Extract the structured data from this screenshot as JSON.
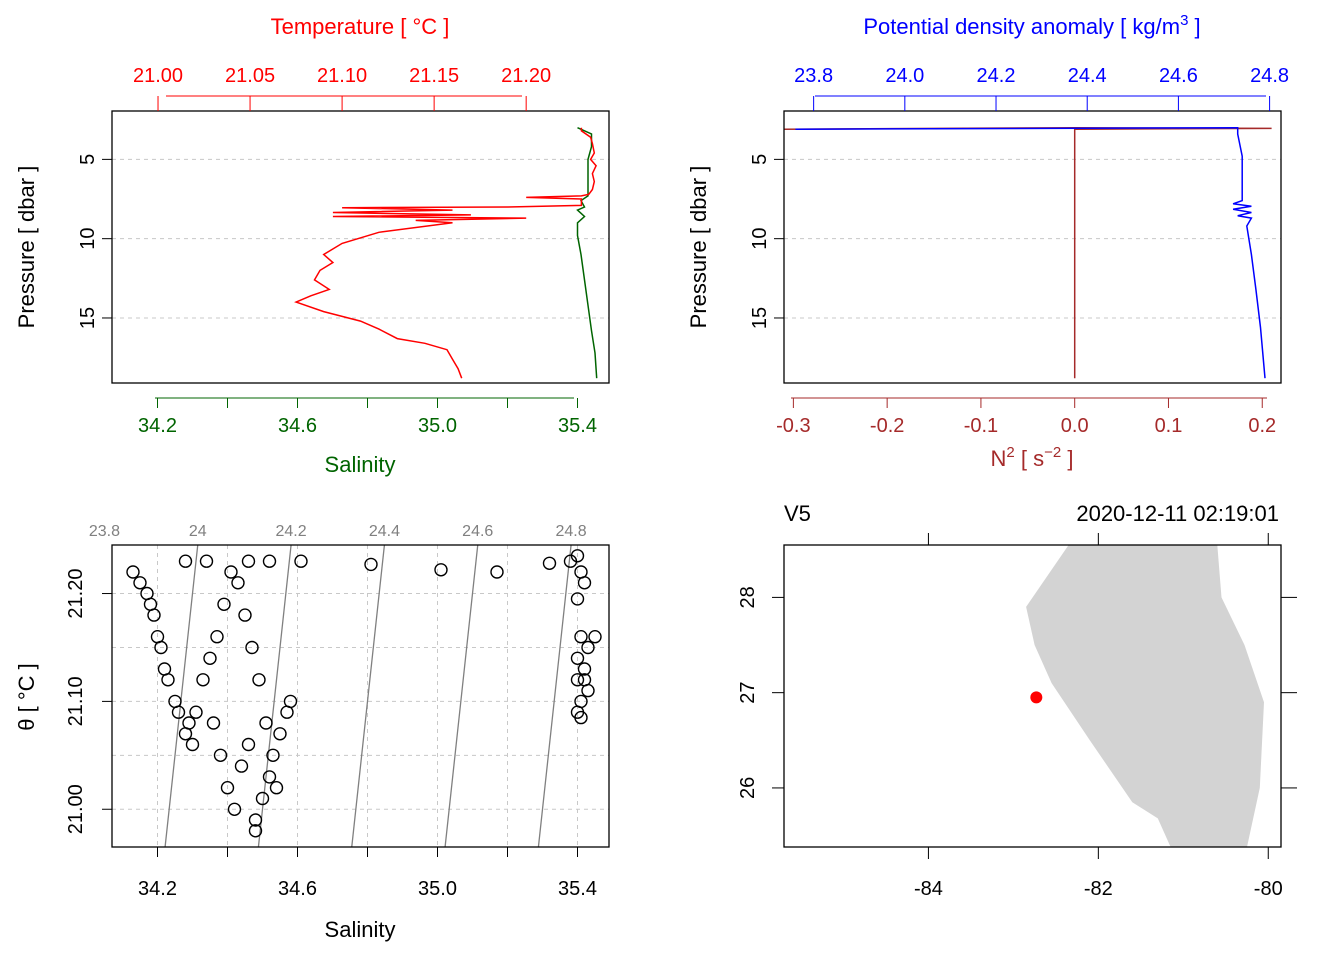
{
  "colors": {
    "temperature": "#ff0000",
    "salinity": "#006400",
    "density": "#0000ff",
    "n2": "#a52a2a",
    "grid": "#c8c8c8",
    "isopycnal": "#808080",
    "land": "#d3d3d3",
    "station": "#ff0000"
  },
  "chart_data": [
    {
      "type": "line",
      "panel": "temperature-salinity-profile",
      "title": "",
      "top_axis_label": "Temperature [ °C ]",
      "bottom_axis_label": "Salinity",
      "ylabel": "Pressure [ dbar ]",
      "temperature_xlim": [
        20.975,
        21.245
      ],
      "salinity_xlim": [
        34.07,
        35.49
      ],
      "ylim": [
        19.1,
        1.95
      ],
      "temperature_ticks": [
        "21.00",
        "21.05",
        "21.10",
        "21.15",
        "21.20"
      ],
      "salinity_ticks": [
        "34.2",
        "34.6",
        "35.0",
        "35.4"
      ],
      "pressure_ticks": [
        "5",
        "10",
        "15"
      ],
      "grid": true,
      "series": [
        {
          "name": "",
          "axis": "temperature",
          "points": [
            [
              21.23,
              3.0
            ],
            [
              21.23,
              3.2
            ],
            [
              21.235,
              3.6
            ],
            [
              21.236,
              4.0
            ],
            [
              21.237,
              4.6
            ],
            [
              21.235,
              5.0
            ],
            [
              21.238,
              5.4
            ],
            [
              21.236,
              5.9
            ],
            [
              21.237,
              6.4
            ],
            [
              21.236,
              6.9
            ],
            [
              21.234,
              7.2
            ],
            [
              21.23,
              7.3
            ],
            [
              21.2,
              7.4
            ],
            [
              21.23,
              7.5
            ],
            [
              21.23,
              7.9
            ],
            [
              21.19,
              8.0
            ],
            [
              21.1,
              8.05
            ],
            [
              21.16,
              8.2
            ],
            [
              21.095,
              8.35
            ],
            [
              21.17,
              8.5
            ],
            [
              21.095,
              8.6
            ],
            [
              21.2,
              8.7
            ],
            [
              21.14,
              8.85
            ],
            [
              21.16,
              9.0
            ],
            [
              21.12,
              9.6
            ],
            [
              21.1,
              10.3
            ],
            [
              21.09,
              11.0
            ],
            [
              21.095,
              11.5
            ],
            [
              21.088,
              12.0
            ],
            [
              21.085,
              12.6
            ],
            [
              21.093,
              13.2
            ],
            [
              21.083,
              13.6
            ],
            [
              21.075,
              14.0
            ],
            [
              21.09,
              14.6
            ],
            [
              21.11,
              15.2
            ],
            [
              21.12,
              15.7
            ],
            [
              21.13,
              16.3
            ],
            [
              21.145,
              16.6
            ],
            [
              21.157,
              17.0
            ],
            [
              21.16,
              17.6
            ],
            [
              21.163,
              18.2
            ],
            [
              21.165,
              18.8
            ]
          ]
        },
        {
          "name": "",
          "axis": "salinity",
          "points": [
            [
              35.4,
              3.0
            ],
            [
              35.44,
              3.4
            ],
            [
              35.44,
              4.2
            ],
            [
              35.43,
              5.0
            ],
            [
              35.43,
              6.2
            ],
            [
              35.43,
              7.3
            ],
            [
              35.41,
              7.6
            ],
            [
              35.42,
              8.0
            ],
            [
              35.4,
              8.2
            ],
            [
              35.42,
              8.6
            ],
            [
              35.4,
              9.0
            ],
            [
              35.4,
              9.8
            ],
            [
              35.41,
              11.0
            ],
            [
              35.42,
              12.6
            ],
            [
              35.43,
              14.2
            ],
            [
              35.44,
              15.8
            ],
            [
              35.45,
              17.2
            ],
            [
              35.455,
              18.8
            ]
          ]
        }
      ]
    },
    {
      "type": "line",
      "panel": "density-n2-profile",
      "title": "",
      "top_axis_label": "Potential density anomaly [ kg/m³ ]",
      "bottom_axis_label": "N² [ s⁻² ]",
      "ylabel": "Pressure [ dbar ]",
      "density_xlim": [
        23.735,
        24.825
      ],
      "n2_xlim": [
        -0.31,
        0.22
      ],
      "ylim": [
        19.1,
        1.95
      ],
      "density_ticks": [
        "23.8",
        "24.0",
        "24.2",
        "24.4",
        "24.6",
        "24.8"
      ],
      "n2_ticks": [
        "-0.3",
        "-0.2",
        "-0.1",
        "0.0",
        "0.1",
        "0.2"
      ],
      "pressure_ticks": [
        "5",
        "10",
        "15"
      ],
      "grid": true,
      "series": [
        {
          "name": "",
          "axis": "density",
          "points": [
            [
              23.76,
              3.1
            ],
            [
              24.73,
              3.0
            ],
            [
              24.73,
              3.4
            ],
            [
              24.74,
              4.8
            ],
            [
              24.74,
              6.6
            ],
            [
              24.74,
              7.6
            ],
            [
              24.72,
              7.8
            ],
            [
              24.76,
              7.95
            ],
            [
              24.72,
              8.15
            ],
            [
              24.76,
              8.35
            ],
            [
              24.73,
              8.55
            ],
            [
              24.76,
              8.7
            ],
            [
              24.75,
              9.2
            ],
            [
              24.76,
              11.0
            ],
            [
              24.77,
              13.2
            ],
            [
              24.78,
              15.6
            ],
            [
              24.79,
              18.8
            ]
          ]
        },
        {
          "name": "",
          "axis": "n2",
          "points": [
            [
              -0.31,
              3.1
            ],
            [
              0.0,
              3.0
            ],
            [
              0.21,
              3.05
            ],
            [
              0.0,
              3.1
            ],
            [
              0.0,
              18.8
            ]
          ]
        }
      ]
    },
    {
      "type": "scatter",
      "panel": "ts-diagram",
      "title": "",
      "xlabel": "Salinity",
      "ylabel": "θ [ °C ]",
      "xlim": [
        34.07,
        35.49
      ],
      "ylim": [
        20.965,
        21.245
      ],
      "x_ticks": [
        "34.2",
        "34.6",
        "35.0",
        "35.4"
      ],
      "y_ticks": [
        "21.00",
        "21.10",
        "21.20"
      ],
      "isopycnal_labels": [
        "23.8",
        "24",
        "24.2",
        "24.4",
        "24.6",
        "24.8"
      ],
      "grid": true,
      "points": [
        [
          34.13,
          21.22
        ],
        [
          34.15,
          21.21
        ],
        [
          34.18,
          21.19
        ],
        [
          34.2,
          21.16
        ],
        [
          34.22,
          21.13
        ],
        [
          34.25,
          21.1
        ],
        [
          34.28,
          21.07
        ],
        [
          34.3,
          21.06
        ],
        [
          34.17,
          21.2
        ],
        [
          34.19,
          21.18
        ],
        [
          34.21,
          21.15
        ],
        [
          34.23,
          21.12
        ],
        [
          34.26,
          21.09
        ],
        [
          34.29,
          21.08
        ],
        [
          34.31,
          21.09
        ],
        [
          34.33,
          21.12
        ],
        [
          34.35,
          21.14
        ],
        [
          34.37,
          21.16
        ],
        [
          34.39,
          21.19
        ],
        [
          34.41,
          21.22
        ],
        [
          34.43,
          21.21
        ],
        [
          34.45,
          21.18
        ],
        [
          34.47,
          21.15
        ],
        [
          34.49,
          21.12
        ],
        [
          34.51,
          21.08
        ],
        [
          34.53,
          21.05
        ],
        [
          34.54,
          21.02
        ],
        [
          34.36,
          21.08
        ],
        [
          34.38,
          21.05
        ],
        [
          34.4,
          21.02
        ],
        [
          34.42,
          21.0
        ],
        [
          34.44,
          21.04
        ],
        [
          34.46,
          21.06
        ],
        [
          34.48,
          20.99
        ],
        [
          34.48,
          20.98
        ],
        [
          34.5,
          21.01
        ],
        [
          34.52,
          21.03
        ],
        [
          34.55,
          21.07
        ],
        [
          34.57,
          21.09
        ],
        [
          34.58,
          21.1
        ],
        [
          34.28,
          21.23
        ],
        [
          34.34,
          21.23
        ],
        [
          34.46,
          21.23
        ],
        [
          34.52,
          21.23
        ],
        [
          34.61,
          21.23
        ],
        [
          34.81,
          21.227
        ],
        [
          35.01,
          21.222
        ],
        [
          35.17,
          21.22
        ],
        [
          35.32,
          21.228
        ],
        [
          35.38,
          21.23
        ],
        [
          35.4,
          21.235
        ],
        [
          35.41,
          21.22
        ],
        [
          35.42,
          21.21
        ],
        [
          35.4,
          21.195
        ],
        [
          35.41,
          21.16
        ],
        [
          35.43,
          21.15
        ],
        [
          35.45,
          21.16
        ],
        [
          35.4,
          21.14
        ],
        [
          35.42,
          21.12
        ],
        [
          35.41,
          21.1
        ],
        [
          35.4,
          21.09
        ],
        [
          35.43,
          21.11
        ],
        [
          35.41,
          21.085
        ],
        [
          35.42,
          21.13
        ],
        [
          35.4,
          21.12
        ]
      ]
    },
    {
      "type": "map",
      "panel": "station-map",
      "title": "",
      "station": "V5",
      "datetime": "2020-12-11 02:19:01",
      "lon_range": [
        -85.7,
        -79.85
      ],
      "lat_range": [
        25.38,
        28.55
      ],
      "lon_ticks": [
        "-84",
        "-82",
        "-80"
      ],
      "lat_ticks": [
        "26",
        "27",
        "28"
      ],
      "station_position": {
        "lon": -82.73,
        "lat": 26.95
      },
      "land_outline": [
        [
          -82.35,
          28.55
        ],
        [
          -80.6,
          28.55
        ],
        [
          -80.55,
          28.0
        ],
        [
          -80.28,
          27.5
        ],
        [
          -80.05,
          26.9
        ],
        [
          -80.1,
          26.0
        ],
        [
          -80.25,
          25.38
        ],
        [
          -81.15,
          25.38
        ],
        [
          -81.3,
          25.68
        ],
        [
          -81.6,
          25.85
        ],
        [
          -82.1,
          26.5
        ],
        [
          -82.55,
          27.1
        ],
        [
          -82.75,
          27.5
        ],
        [
          -82.85,
          27.9
        ],
        [
          -82.35,
          28.55
        ]
      ]
    }
  ]
}
